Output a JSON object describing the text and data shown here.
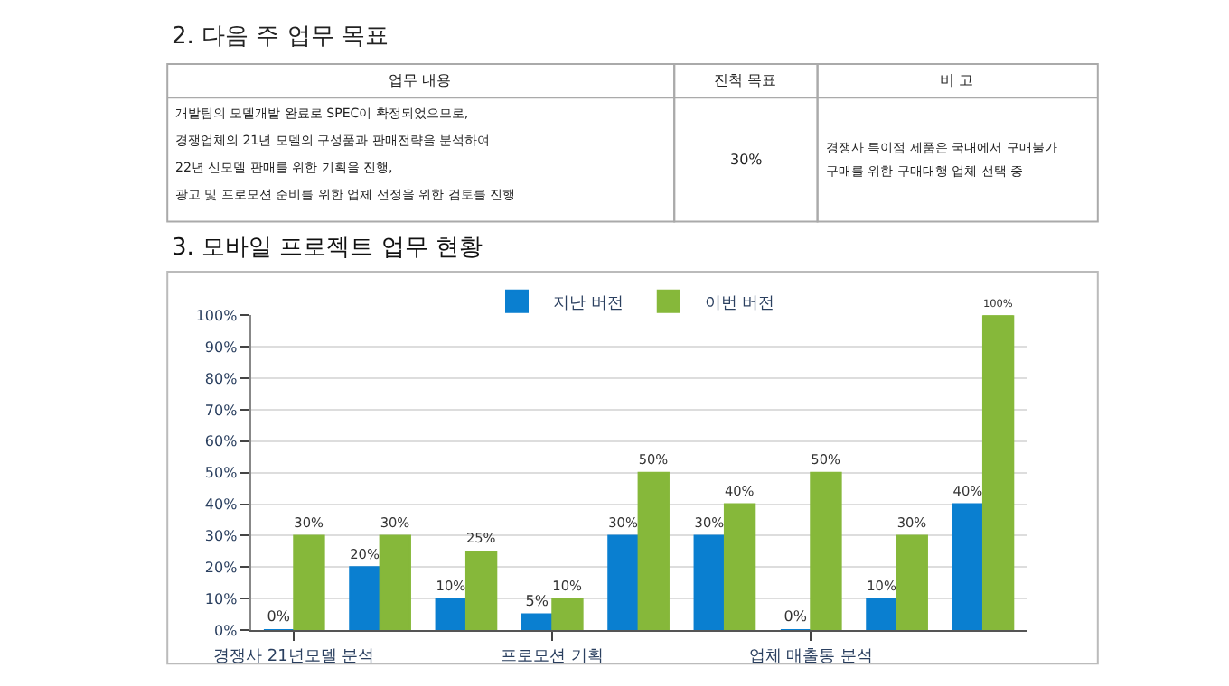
{
  "chart_data": {
    "type": "bar",
    "title": "3. 모바일 프로젝트 업무 현황",
    "annotations": [
      "2. 다음 주 업무 목표",
      "업무 내용",
      "진척 목표",
      "비 고",
      "개발팀의 모델개발 완료로 SPEC이 확정되었으므로,",
      "경쟁업체의 21년 모델의 구성품과 판매전략을 분석하여",
      "22년 신모델 판매를 위한 기획을 진행,",
      "광고 및 프로모션 준비를 위한 업체 선정을 위한 검토를 진행",
      "30%",
      "경쟁사 특이점 제품은 국내에서 구매불가",
      "구매를 위한 구매대행 업체 선택 중"
    ],
    "categories": [
      "경쟁사 21년모델 분석",
      null,
      null,
      "프로모션 기획",
      null,
      null,
      "업체 매출통 분석",
      null,
      null
    ],
    "series": [
      {
        "name": "지난 버전",
        "color": "#0a7fd0",
        "values": [
          0,
          20,
          10,
          5,
          30,
          30,
          0,
          10,
          40
        ],
        "value_labels": [
          "0%",
          "20%",
          "10%",
          "5%",
          "30%",
          "30%",
          "0%",
          "10%",
          "40%"
        ]
      },
      {
        "name": "이번 버전",
        "color": "#86b83a",
        "values": [
          30,
          30,
          25,
          10,
          50,
          40,
          50,
          30,
          100
        ],
        "value_labels": [
          "30%",
          "30%",
          "25%",
          "10%",
          "50%",
          "40%",
          "50%",
          "30%",
          "100%"
        ]
      }
    ],
    "ylim": [
      0,
      100
    ],
    "yticks": [
      {
        "value": 0,
        "label": "0%"
      },
      {
        "value": 10,
        "label": "10%"
      },
      {
        "value": 20,
        "label": "20%"
      },
      {
        "value": 30,
        "label": "30%"
      },
      {
        "value": 40,
        "label": "40%"
      },
      {
        "value": 50,
        "label": "50%"
      },
      {
        "value": 60,
        "label": "60%"
      },
      {
        "value": 70,
        "label": "70%"
      },
      {
        "value": 80,
        "label": "80%"
      },
      {
        "value": 90,
        "label": "90%"
      },
      {
        "value": 100,
        "label": "100%"
      }
    ],
    "grid": "y",
    "legend": "top"
  }
}
